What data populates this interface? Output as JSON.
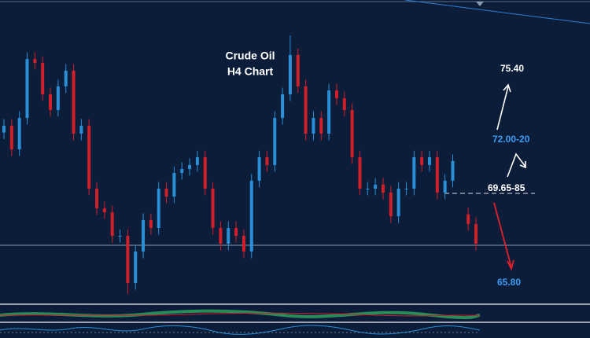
{
  "chart_data": {
    "type": "candlestick",
    "title": "Crude Oil",
    "subtitle": "H4  Chart",
    "annotations": [
      "75.40",
      "72.00-20",
      "69.65-85",
      "65.80"
    ],
    "ylim": [
      64.8,
      78.5
    ],
    "up_color": "#2a8fd6",
    "down_color": "#d0202a",
    "open": [
      72.5,
      72.81,
      71.74,
      73.16,
      75.83,
      75.65,
      74.23,
      73.52,
      74.59,
      75.3,
      72.45,
      72.81,
      69.96,
      69.07,
      68.89,
      67.82,
      67.82,
      65.69,
      67.11,
      68.54,
      68.18,
      69.96,
      69.6,
      70.67,
      70.85,
      71.03,
      71.38,
      69.96,
      68.18,
      67.47,
      68.18,
      67.82,
      67.11,
      70.32,
      71.38,
      71.03,
      73.16,
      74.23,
      76.01,
      74.59,
      72.45,
      73.16,
      72.45,
      74.41,
      74.05,
      73.52,
      71.38,
      69.96,
      69.96,
      70.14,
      69.78,
      68.71,
      69.96,
      69.96,
      71.38,
      71.03,
      71.38,
      69.78,
      70.32,
      null,
      68.8,
      68.36
    ],
    "high": [
      73.11,
      73.11,
      73.46,
      76.13,
      76.13,
      75.95,
      74.53,
      74.89,
      75.6,
      75.6,
      73.11,
      73.11,
      70.26,
      69.37,
      69.19,
      68.12,
      68.12,
      67.41,
      68.84,
      68.84,
      70.26,
      70.26,
      70.97,
      71.15,
      71.33,
      71.68,
      71.68,
      70.26,
      68.48,
      68.48,
      68.48,
      68.12,
      70.62,
      71.68,
      71.68,
      73.46,
      74.53,
      76.9,
      76.31,
      74.89,
      73.46,
      73.46,
      74.71,
      74.71,
      74.35,
      73.82,
      71.68,
      70.26,
      70.44,
      70.44,
      70.08,
      70.26,
      70.26,
      71.68,
      71.68,
      71.68,
      71.68,
      70.62,
      71.51,
      null,
      69.1,
      68.66
    ],
    "low": [
      72.2,
      71.44,
      71.44,
      72.86,
      75.35,
      73.93,
      73.22,
      73.22,
      74.29,
      72.15,
      72.15,
      69.66,
      68.77,
      68.59,
      67.52,
      67.52,
      65.2,
      65.39,
      66.81,
      67.88,
      67.88,
      69.3,
      69.3,
      70.37,
      70.55,
      70.73,
      69.66,
      67.88,
      67.17,
      67.17,
      67.52,
      66.81,
      66.81,
      70.02,
      70.73,
      70.73,
      72.86,
      73.93,
      74.29,
      72.15,
      72.15,
      72.15,
      72.15,
      73.75,
      73.22,
      71.08,
      69.66,
      69.66,
      69.66,
      69.48,
      68.41,
      68.41,
      69.66,
      69.66,
      70.73,
      70.73,
      69.48,
      69.48,
      70.02,
      null,
      68.06,
      67.17
    ],
    "close": [
      72.81,
      71.74,
      73.16,
      75.83,
      75.65,
      74.23,
      73.52,
      74.59,
      75.3,
      72.45,
      72.81,
      69.96,
      69.07,
      68.89,
      67.82,
      67.82,
      65.69,
      67.11,
      68.54,
      68.18,
      69.96,
      69.6,
      70.67,
      70.85,
      71.03,
      71.38,
      69.96,
      68.18,
      67.47,
      68.18,
      67.82,
      67.11,
      70.32,
      71.38,
      71.03,
      73.16,
      74.23,
      76.01,
      74.59,
      72.45,
      73.16,
      72.45,
      74.41,
      74.05,
      73.52,
      71.38,
      69.96,
      69.96,
      70.14,
      69.78,
      68.71,
      69.96,
      69.96,
      71.38,
      71.03,
      71.38,
      69.78,
      70.32,
      71.21,
      null,
      68.36,
      67.47
    ]
  }
}
